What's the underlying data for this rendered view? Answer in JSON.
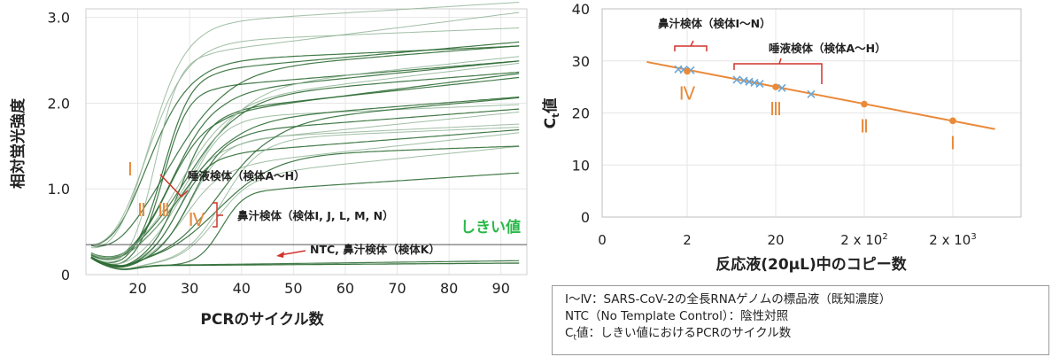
{
  "colors": {
    "curve_dark": "#2e6b34",
    "curve_light": "#8fb394",
    "threshold_green": "#2bb84b",
    "orange": "#e98a3a",
    "red": "#d0342c",
    "cross_blue": "#6aa7d6"
  },
  "chart_data": [
    {
      "type": "line",
      "title": "",
      "xlabel": "PCRのサイクル数",
      "ylabel": "相対蛍光強度",
      "xlim": [
        10,
        95
      ],
      "ylim": [
        0,
        3.1
      ],
      "x_ticks": [
        "20",
        "30",
        "40",
        "50",
        "60",
        "70",
        "80",
        "90"
      ],
      "y_ticks": [
        "0",
        "1.0",
        "2.0",
        "3.0"
      ],
      "grid": true,
      "threshold": {
        "value": 0.35,
        "label": "しきい値"
      },
      "series_groups": [
        {
          "label": "Ⅰ",
          "count": 3,
          "midpoint": 22,
          "plateau": [
            2.5,
            2.95
          ]
        },
        {
          "label": "Ⅱ",
          "count": 3,
          "midpoint": 24.5,
          "plateau": [
            2.2,
            2.6
          ]
        },
        {
          "label": "Ⅲ",
          "count": 3,
          "midpoint": 27,
          "plateau": [
            1.9,
            2.4
          ]
        },
        {
          "label": "Ⅳ",
          "count": 3,
          "midpoint": 30,
          "plateau": [
            1.6,
            2.1
          ]
        },
        {
          "label": "唾液検体（検体A～H）",
          "count": 8,
          "midpoint": 29,
          "plateau": [
            1.3,
            2.2
          ]
        },
        {
          "label": "鼻汁検体（検体I, J, L, M, N）",
          "count": 5,
          "midpoint": 36,
          "plateau": [
            1.0,
            1.8
          ]
        },
        {
          "label": "NTC, 鼻汁検体（検体K）",
          "count": 3,
          "midpoint": null,
          "plateau": [
            0.1,
            0.15
          ]
        }
      ],
      "annotations": {
        "I": "Ⅰ",
        "II": "Ⅱ",
        "III": "Ⅲ",
        "IV": "Ⅳ",
        "saliva": "唾液検体（検体A～H）",
        "nasal": "鼻汁検体（検体I, J, L, M, N）",
        "ntc": "NTC, 鼻汁検体（検体K）"
      }
    },
    {
      "type": "scatter",
      "title": "",
      "xlabel": "反応液(20μL)中のコピー数",
      "ylabel": "Ct値",
      "ylim": [
        0,
        40
      ],
      "x_ticks": [
        "0",
        "2",
        "20",
        "2 x 10²",
        "2 x 10³"
      ],
      "y_ticks": [
        "0",
        "10",
        "20",
        "30",
        "40"
      ],
      "x_scale": "log",
      "grid": true,
      "standards": [
        {
          "label": "Ⅳ",
          "copies": 2,
          "ct": 28.0
        },
        {
          "label": "Ⅲ",
          "copies": 20,
          "ct": 25.0
        },
        {
          "label": "Ⅱ",
          "copies": 200,
          "ct": 21.7
        },
        {
          "label": "Ⅰ",
          "copies": 2000,
          "ct": 18.5
        }
      ],
      "nasal_samples": {
        "label": "鼻汁検体（検体I～N）",
        "ct": [
          28.4,
          28.3,
          28.2
        ]
      },
      "saliva_samples": {
        "label": "唾液検体（検体A～H）",
        "ct": [
          26.4,
          26.2,
          26.0,
          25.8,
          25.6,
          24.8,
          23.6
        ]
      },
      "fit_line": {
        "copies": [
          0.7,
          6000
        ],
        "ct": [
          29.8,
          16.9
        ]
      }
    }
  ],
  "note": {
    "line1": "Ⅰ～Ⅳ：SARS-CoV-2の全長RNAゲノムの標品液（既知濃度）",
    "line2": "NTC（No Template Control）：陰性対照",
    "line3": "Ct値：しきい値におけるPCRのサイクル数"
  }
}
